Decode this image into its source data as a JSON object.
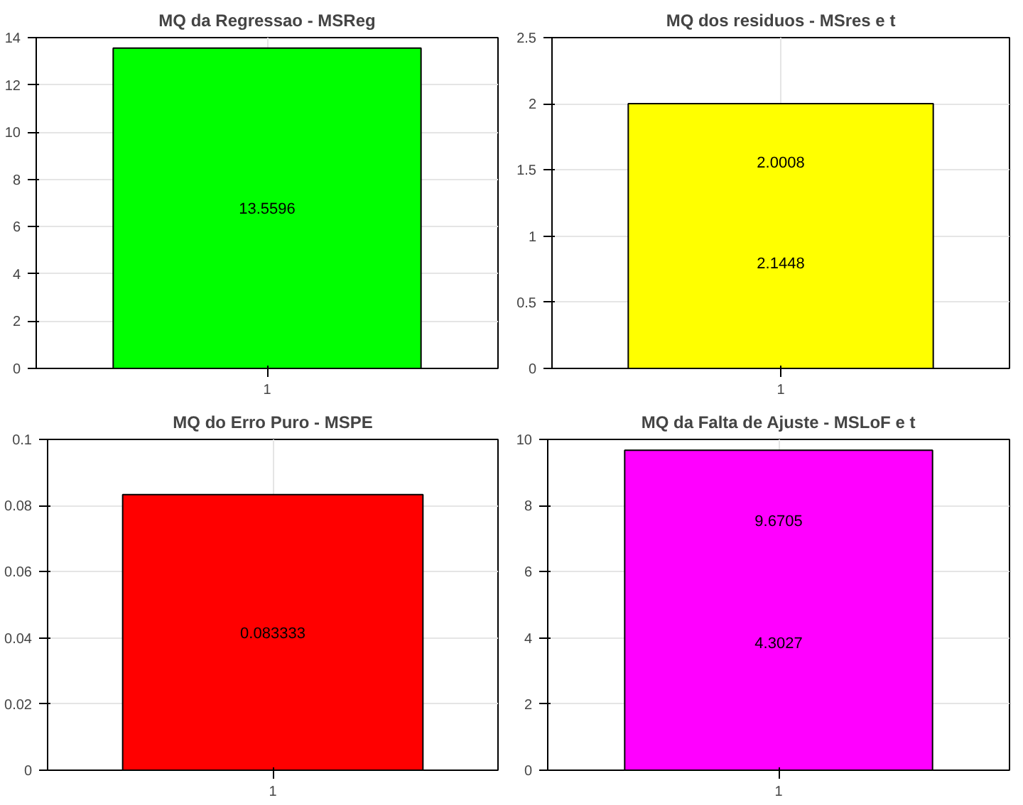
{
  "chart_data": [
    {
      "type": "bar",
      "title": "MQ da Regressao - MSReg",
      "categories": [
        "1"
      ],
      "values": [
        13.5596
      ],
      "color": "#00ff00",
      "ylim": [
        0,
        14
      ],
      "yticks": [
        0,
        2,
        4,
        6,
        8,
        10,
        12,
        14
      ],
      "grid": true,
      "data_labels": true
    },
    {
      "type": "bar",
      "title": "MQ dos residuos - MSres e t",
      "categories": [
        "1"
      ],
      "values": [
        2.0008
      ],
      "color": "#ffff00",
      "ylim": [
        0,
        2.5
      ],
      "yticks": [
        0,
        0.5,
        1,
        1.5,
        2,
        2.5
      ],
      "grid": true,
      "data_labels": true,
      "annotations": [
        "2.1448"
      ]
    },
    {
      "type": "bar",
      "title": "MQ do Erro Puro - MSPE",
      "categories": [
        "1"
      ],
      "values": [
        0.083333
      ],
      "color": "#ff0000",
      "ylim": [
        0,
        0.1
      ],
      "yticks": [
        0,
        0.02,
        0.04,
        0.06,
        0.08,
        0.1
      ],
      "grid": true,
      "data_labels": true
    },
    {
      "type": "bar",
      "title": "MQ da Falta de Ajuste - MSLoF e t",
      "categories": [
        "1"
      ],
      "values": [
        9.6705
      ],
      "color": "#ff00ff",
      "ylim": [
        0,
        10
      ],
      "yticks": [
        0,
        2,
        4,
        6,
        8,
        10
      ],
      "grid": true,
      "data_labels": true,
      "annotations": [
        "4.3027"
      ]
    }
  ]
}
